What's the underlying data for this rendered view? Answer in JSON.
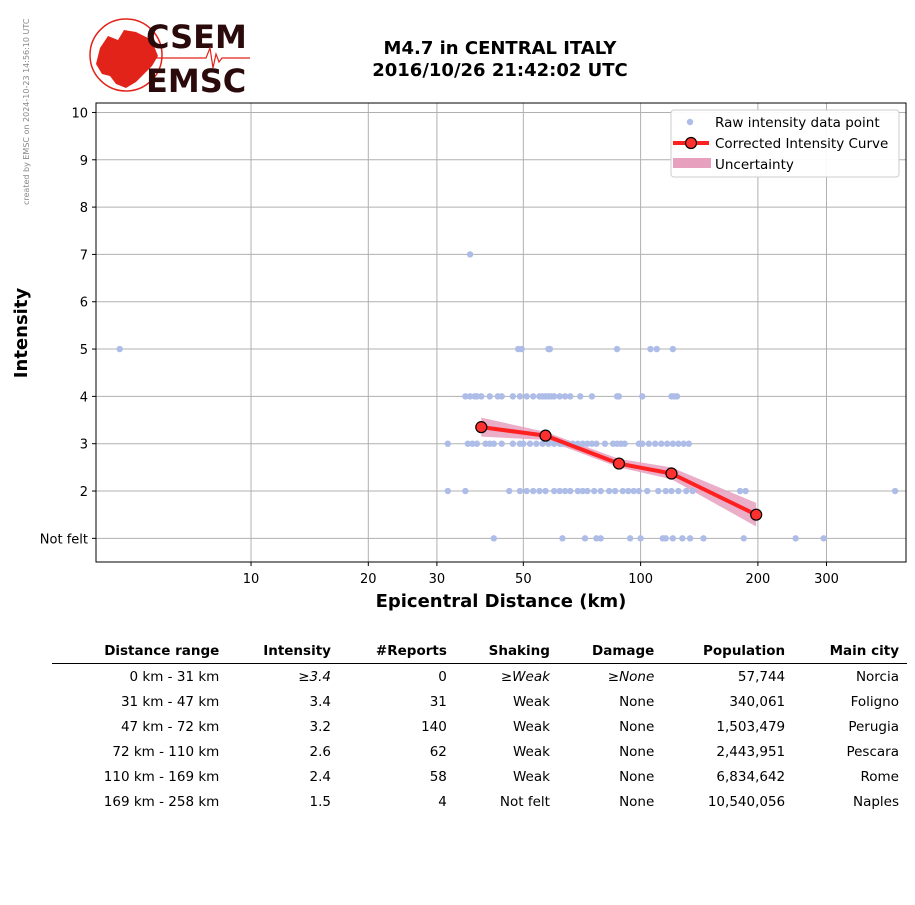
{
  "credit": "created by EMSC on 2024-10-23 14:56:10 UTC",
  "logo": {
    "line1": "CSEM",
    "line2": "EMSC"
  },
  "title": {
    "line1": "M4.7 in CENTRAL ITALY",
    "line2": "2016/10/26 21:42:02 UTC"
  },
  "colors": {
    "raw": "#aebde8",
    "curve": "#ff2020",
    "marker_fill": "#ff3030",
    "uncertainty": "#e8a0bf",
    "grid": "#b0b0b0",
    "logo_red": "#e2231a",
    "logo_dark": "#2a0a0a"
  },
  "chart_data": {
    "type": "scatter",
    "xlabel": "Epicentral Distance (km)",
    "ylabel": "Intensity",
    "xscale": "log",
    "xlim": [
      4,
      480
    ],
    "ylim": [
      0.5,
      10.2
    ],
    "x_ticks": [
      10,
      20,
      30,
      50,
      100,
      200,
      300
    ],
    "y_ticks": [
      {
        "v": 1,
        "label": "Not felt"
      },
      {
        "v": 2,
        "label": "2"
      },
      {
        "v": 3,
        "label": "3"
      },
      {
        "v": 4,
        "label": "4"
      },
      {
        "v": 5,
        "label": "5"
      },
      {
        "v": 6,
        "label": "6"
      },
      {
        "v": 7,
        "label": "7"
      },
      {
        "v": 8,
        "label": "8"
      },
      {
        "v": 9,
        "label": "9"
      },
      {
        "v": 10,
        "label": "10"
      }
    ],
    "grid": true,
    "legend_position": "top-right",
    "legend": [
      "Raw intensity data point",
      "Corrected Intensity Curve",
      "Uncertainty"
    ],
    "raw_points": [
      [
        4.6,
        5
      ],
      [
        36.5,
        7
      ],
      [
        48.5,
        5
      ],
      [
        49.5,
        5
      ],
      [
        58,
        5
      ],
      [
        58.5,
        5
      ],
      [
        87,
        5
      ],
      [
        106,
        5
      ],
      [
        110,
        5
      ],
      [
        121,
        5
      ],
      [
        35.5,
        4
      ],
      [
        36.5,
        4
      ],
      [
        37.5,
        4
      ],
      [
        38,
        4
      ],
      [
        39,
        4
      ],
      [
        41,
        4
      ],
      [
        43,
        4
      ],
      [
        44,
        4
      ],
      [
        47,
        4
      ],
      [
        49,
        4
      ],
      [
        51,
        4
      ],
      [
        53,
        4
      ],
      [
        55,
        4
      ],
      [
        56,
        4
      ],
      [
        57,
        4
      ],
      [
        58,
        4
      ],
      [
        59,
        4
      ],
      [
        60,
        4
      ],
      [
        62,
        4
      ],
      [
        64,
        4
      ],
      [
        66,
        4
      ],
      [
        70,
        4
      ],
      [
        75,
        4
      ],
      [
        87,
        4
      ],
      [
        88,
        4
      ],
      [
        101,
        4
      ],
      [
        120,
        4
      ],
      [
        122,
        4
      ],
      [
        124,
        4
      ],
      [
        32,
        3
      ],
      [
        36,
        3
      ],
      [
        37,
        3
      ],
      [
        38,
        3
      ],
      [
        40,
        3
      ],
      [
        41,
        3
      ],
      [
        42,
        3
      ],
      [
        44,
        3
      ],
      [
        47,
        3
      ],
      [
        49,
        3
      ],
      [
        50,
        3
      ],
      [
        52,
        3
      ],
      [
        54,
        3
      ],
      [
        56,
        3
      ],
      [
        58,
        3
      ],
      [
        60,
        3
      ],
      [
        62,
        3
      ],
      [
        63,
        3
      ],
      [
        65,
        3
      ],
      [
        67,
        3
      ],
      [
        69,
        3
      ],
      [
        71,
        3
      ],
      [
        73,
        3
      ],
      [
        75,
        3
      ],
      [
        77,
        3
      ],
      [
        81,
        3
      ],
      [
        85,
        3
      ],
      [
        87,
        3
      ],
      [
        89,
        3
      ],
      [
        91,
        3
      ],
      [
        99,
        3
      ],
      [
        101,
        3
      ],
      [
        105,
        3
      ],
      [
        109,
        3
      ],
      [
        113,
        3
      ],
      [
        117,
        3
      ],
      [
        121,
        3
      ],
      [
        125,
        3
      ],
      [
        129,
        3
      ],
      [
        133,
        3
      ],
      [
        32,
        2
      ],
      [
        35.5,
        2
      ],
      [
        46,
        2
      ],
      [
        49,
        2
      ],
      [
        51,
        2
      ],
      [
        53,
        2
      ],
      [
        55,
        2
      ],
      [
        57,
        2
      ],
      [
        60,
        2
      ],
      [
        62,
        2
      ],
      [
        64,
        2
      ],
      [
        66,
        2
      ],
      [
        69,
        2
      ],
      [
        71,
        2
      ],
      [
        73,
        2
      ],
      [
        76,
        2
      ],
      [
        79,
        2
      ],
      [
        83,
        2
      ],
      [
        86,
        2
      ],
      [
        90,
        2
      ],
      [
        93,
        2
      ],
      [
        96,
        2
      ],
      [
        99,
        2
      ],
      [
        104,
        2
      ],
      [
        111,
        2
      ],
      [
        116,
        2
      ],
      [
        120,
        2
      ],
      [
        125,
        2
      ],
      [
        131,
        2
      ],
      [
        136,
        2
      ],
      [
        180,
        2
      ],
      [
        186,
        2
      ],
      [
        450,
        2
      ],
      [
        42,
        1
      ],
      [
        63,
        1
      ],
      [
        72,
        1
      ],
      [
        77,
        1
      ],
      [
        79,
        1
      ],
      [
        94,
        1
      ],
      [
        100,
        1
      ],
      [
        114,
        1
      ],
      [
        116,
        1
      ],
      [
        121,
        1
      ],
      [
        128,
        1
      ],
      [
        134,
        1
      ],
      [
        145,
        1
      ],
      [
        184,
        1
      ],
      [
        250,
        1
      ],
      [
        295,
        1
      ]
    ],
    "curve": [
      [
        39,
        3.35
      ],
      [
        57,
        3.17
      ],
      [
        88,
        2.58
      ],
      [
        120,
        2.37
      ],
      [
        198,
        1.5
      ]
    ],
    "uncertainty": {
      "upper": [
        [
          39,
          3.55
        ],
        [
          57,
          3.25
        ],
        [
          88,
          2.68
        ],
        [
          120,
          2.5
        ],
        [
          198,
          1.75
        ]
      ],
      "lower": [
        [
          39,
          3.15
        ],
        [
          57,
          3.08
        ],
        [
          88,
          2.5
        ],
        [
          120,
          2.25
        ],
        [
          198,
          1.25
        ]
      ]
    }
  },
  "table": {
    "headers": [
      "Distance range",
      "Intensity",
      "#Reports",
      "Shaking",
      "Damage",
      "Population",
      "Main city"
    ],
    "rows": [
      [
        "0 km -   31 km",
        "≥3.4",
        "0",
        "≥Weak",
        "≥None",
        "57,744",
        "Norcia"
      ],
      [
        "31 km -   47 km",
        "3.4",
        "31",
        "Weak",
        "None",
        "340,061",
        "Foligno"
      ],
      [
        "47 km -   72 km",
        "3.2",
        "140",
        "Weak",
        "None",
        "1,503,479",
        "Perugia"
      ],
      [
        "72 km -  110 km",
        "2.6",
        "62",
        "Weak",
        "None",
        "2,443,951",
        "Pescara"
      ],
      [
        "110 km -  169 km",
        "2.4",
        "58",
        "Weak",
        "None",
        "6,834,642",
        "Rome"
      ],
      [
        "169 km -  258 km",
        "1.5",
        "4",
        "Not felt",
        "None",
        "10,540,056",
        "Naples"
      ]
    ]
  }
}
